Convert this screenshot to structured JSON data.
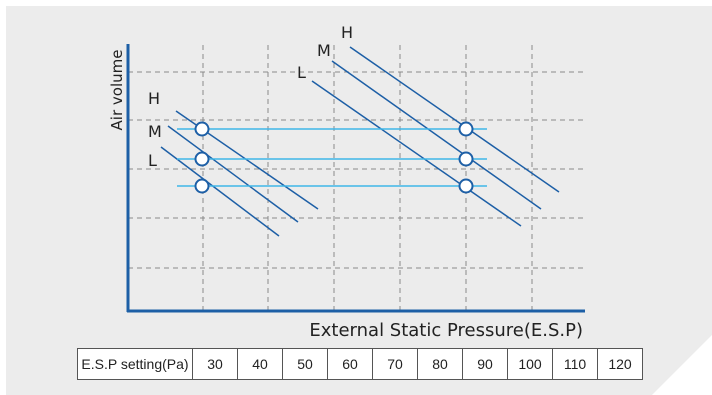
{
  "diagram": {
    "y_axis_label": "Air volume",
    "x_axis_label": "External Static Pressure(E.S.P)",
    "speed_labels_left": [
      "H",
      "M",
      "L"
    ],
    "speed_labels_right": [
      "H",
      "M",
      "L"
    ],
    "colors": {
      "axis": "#1d5fa6",
      "curve": "#1d5fa6",
      "level_line": "#3fb6e8",
      "grid": "#8a8a8a",
      "panel": "#ececec"
    }
  },
  "esp_table": {
    "header": "E.S.P setting(Pa)",
    "values": [
      "30",
      "40",
      "50",
      "60",
      "70",
      "80",
      "90",
      "100",
      "110",
      "120"
    ]
  }
}
